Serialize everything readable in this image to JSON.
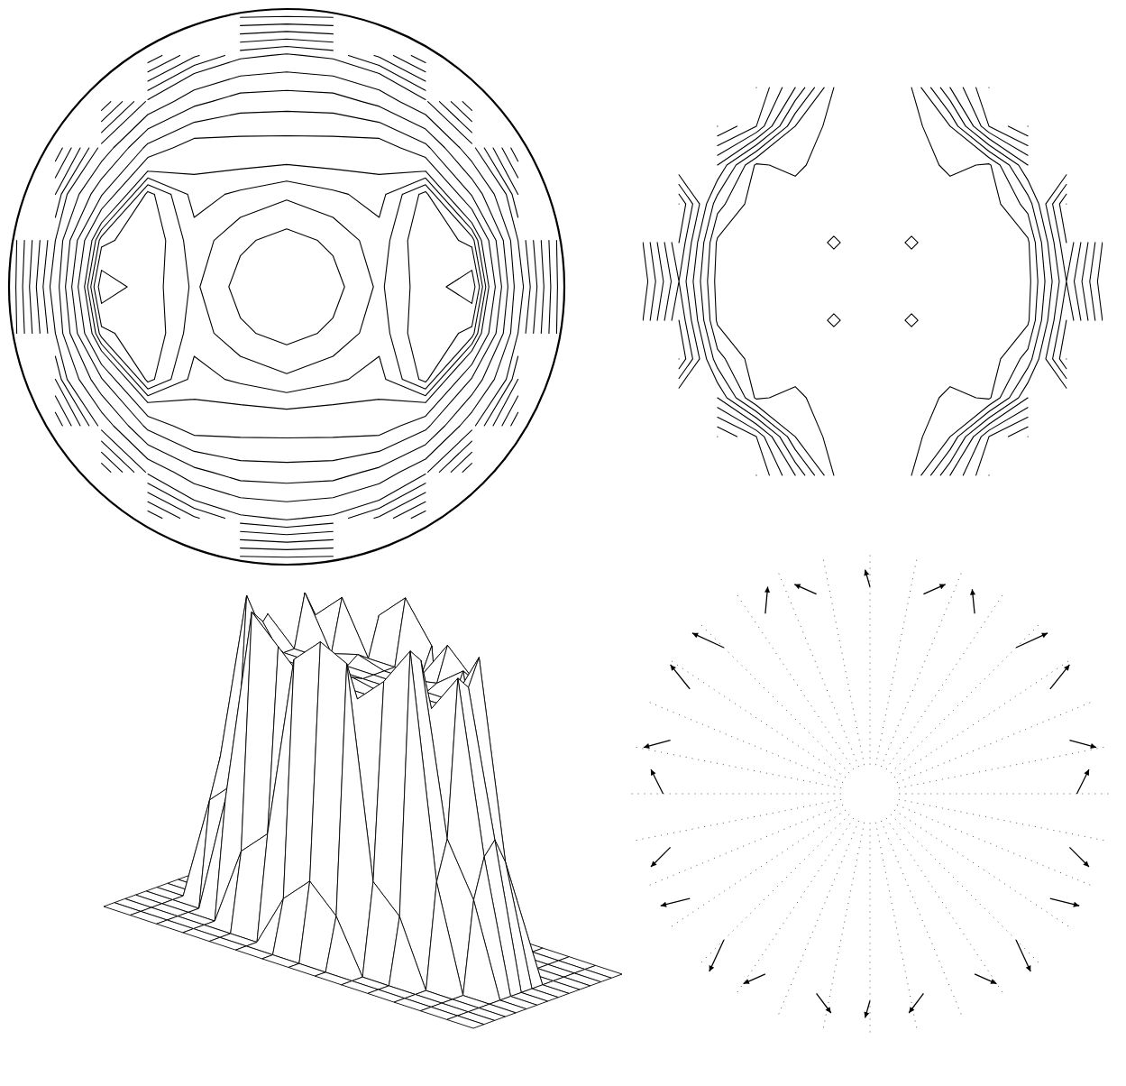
{
  "chart_data": [
    {
      "type": "contour",
      "x": [
        -1,
        -0.833,
        -0.667,
        -0.5,
        -0.333,
        -0.167,
        0,
        0.167,
        0.333,
        0.5,
        0.667,
        0.833,
        1
      ],
      "y": [
        1,
        0.833,
        0.667,
        0.5,
        0.333,
        0.167,
        0,
        -0.167,
        -0.333,
        -0.5,
        -0.667,
        -0.833,
        -1
      ],
      "levels": [
        0.5,
        1,
        1.5,
        2,
        2.5,
        3,
        4,
        5,
        6,
        7,
        8,
        8.5,
        9,
        9.5,
        10.2
      ],
      "values": [
        [
          null,
          null,
          null,
          null,
          null,
          0,
          0,
          0,
          null,
          null,
          null,
          null,
          null
        ],
        [
          null,
          null,
          null,
          0.6,
          1.9,
          2.8,
          3.1,
          2.8,
          1.9,
          0.6,
          null,
          null,
          null
        ],
        [
          null,
          null,
          1.1,
          3.1,
          4.7,
          5.5,
          5.6,
          5.5,
          4.7,
          3.1,
          1.1,
          null,
          null
        ],
        [
          null,
          0.6,
          3.2,
          6.3,
          7.6,
          7.5,
          7.5,
          7.5,
          7.6,
          6.3,
          3.2,
          0.6,
          null
        ],
        [
          null,
          2.0,
          5.9,
          9.7,
          8.3,
          8.6,
          8.9,
          8.6,
          8.3,
          9.7,
          5.9,
          2.0,
          null
        ],
        [
          0,
          3.0,
          9.3,
          10.0,
          8.7,
          9.4,
          9.7,
          9.4,
          8.7,
          10.0,
          9.3,
          3.0,
          0
        ],
        [
          0,
          3.4,
          10.7,
          9.8,
          8.9,
          9.7,
          10.0,
          9.7,
          8.9,
          9.8,
          10.7,
          3.4,
          0
        ],
        [
          0,
          3.0,
          9.3,
          10.0,
          8.7,
          9.4,
          9.7,
          9.4,
          8.7,
          10.0,
          9.3,
          3.0,
          0
        ],
        [
          null,
          2.0,
          5.9,
          9.7,
          8.3,
          8.6,
          8.9,
          8.6,
          8.3,
          9.7,
          5.9,
          2.0,
          null
        ],
        [
          null,
          0.6,
          3.2,
          6.3,
          7.6,
          7.5,
          7.5,
          7.5,
          7.6,
          6.3,
          3.2,
          0.6,
          null
        ],
        [
          null,
          null,
          1.1,
          3.1,
          4.7,
          5.5,
          5.6,
          5.5,
          4.7,
          3.1,
          1.1,
          null,
          null
        ],
        [
          null,
          null,
          null,
          0.6,
          1.9,
          2.8,
          3.1,
          2.8,
          1.9,
          0.6,
          null,
          null,
          null
        ],
        [
          null,
          null,
          null,
          null,
          null,
          0,
          0,
          0,
          null,
          null,
          null,
          null,
          null
        ]
      ]
    },
    {
      "type": "contour",
      "x": [
        -1,
        -0.833,
        -0.667,
        -0.5,
        -0.333,
        -0.167,
        0,
        0.167,
        0.333,
        0.5,
        0.667,
        0.833,
        1
      ],
      "y": [
        1,
        0.833,
        0.667,
        0.5,
        0.333,
        0.167,
        0,
        -0.167,
        -0.333,
        -0.5,
        -0.667,
        -0.833,
        -1
      ],
      "levels": [
        0.5,
        1,
        1.5,
        2,
        2.5,
        3,
        3.5,
        4,
        4.5
      ],
      "values": [
        [
          null,
          null,
          null,
          null,
          null,
          0.2,
          0,
          0.2,
          null,
          null,
          null,
          null,
          null
        ],
        [
          null,
          null,
          null,
          4.0,
          2.5,
          0.5,
          0,
          0.5,
          2.5,
          4.0,
          null,
          null,
          null
        ],
        [
          null,
          null,
          4.5,
          3.5,
          1.0,
          0.3,
          0,
          0.3,
          1.0,
          3.5,
          4.5,
          null,
          null
        ],
        [
          null,
          2.0,
          2.5,
          0.4,
          0.7,
          0,
          0,
          0,
          0.7,
          0.4,
          2.5,
          2.0,
          null
        ],
        [
          null,
          4.0,
          1.2,
          0.2,
          0,
          0,
          0,
          0,
          0,
          0.2,
          1.2,
          4.0,
          null
        ],
        [
          0.8,
          3.5,
          0.4,
          0,
          0,
          0.6,
          0,
          0.6,
          0,
          0,
          0.4,
          3.5,
          0.8
        ],
        [
          0.5,
          3.0,
          0.3,
          0,
          0,
          0,
          0,
          0,
          0,
          0,
          0.3,
          3.0,
          0.5
        ],
        [
          0.8,
          3.5,
          0.4,
          0,
          0,
          0.6,
          0,
          0.6,
          0,
          0,
          0.4,
          3.5,
          0.8
        ],
        [
          null,
          4.0,
          1.2,
          0.2,
          0,
          0,
          0,
          0,
          0,
          0.2,
          1.2,
          4.0,
          null
        ],
        [
          null,
          2.0,
          2.5,
          0.4,
          0.7,
          0,
          0,
          0,
          0.7,
          0.4,
          2.5,
          2.0,
          null
        ],
        [
          null,
          null,
          4.5,
          3.5,
          1.0,
          0.3,
          0,
          0.3,
          1.0,
          3.5,
          4.5,
          null,
          null
        ],
        [
          null,
          null,
          null,
          4.0,
          2.5,
          0.5,
          0,
          0.5,
          2.5,
          4.0,
          null,
          null,
          null
        ],
        [
          null,
          null,
          null,
          null,
          null,
          0.2,
          0,
          0.2,
          null,
          null,
          null,
          null,
          null
        ]
      ]
    },
    {
      "type": "surface",
      "values": [
        [
          0,
          0,
          0,
          0,
          0,
          0,
          0,
          0,
          0,
          0,
          0,
          0,
          0,
          0,
          0
        ],
        [
          0,
          0,
          0,
          0,
          0,
          0,
          0,
          0,
          0,
          0,
          0,
          0,
          0,
          0,
          0
        ],
        [
          0,
          0,
          0,
          0,
          0,
          0,
          0,
          0,
          0,
          0,
          0,
          0,
          0,
          0,
          0
        ],
        [
          0,
          0,
          0,
          0,
          0,
          0,
          11.5,
          12.5,
          11,
          0,
          0,
          0,
          0,
          0,
          0
        ],
        [
          0,
          0,
          0,
          3,
          11,
          12,
          10,
          10,
          10,
          11.5,
          10.5,
          2.5,
          0,
          0,
          0
        ],
        [
          0,
          0,
          3.5,
          4.5,
          12,
          10,
          10.3,
          10,
          10,
          10.2,
          11,
          4,
          3,
          0,
          0
        ],
        [
          0,
          0,
          5,
          11,
          10,
          10,
          10,
          10,
          10,
          10,
          10,
          12,
          4.5,
          0,
          0
        ],
        [
          0,
          0,
          4,
          10.5,
          10,
          10,
          10,
          10,
          10,
          10,
          10,
          11,
          5.5,
          0,
          0
        ],
        [
          0,
          0,
          5.5,
          12,
          10,
          10,
          10,
          10.2,
          10,
          10,
          10,
          11.5,
          5,
          0,
          0
        ],
        [
          0,
          0,
          4,
          5,
          11.5,
          10,
          10,
          10,
          10,
          10,
          12,
          5.5,
          3.5,
          0,
          0
        ],
        [
          0,
          0,
          0,
          4.5,
          12,
          11,
          10,
          10,
          10,
          11,
          12.5,
          4,
          0,
          0,
          0
        ],
        [
          0,
          0,
          0,
          0,
          3,
          4,
          11,
          12,
          11.5,
          3.5,
          2.5,
          0,
          0,
          0,
          0
        ],
        [
          0,
          0,
          0,
          0,
          0,
          0,
          2,
          3,
          2,
          0,
          0,
          0,
          0,
          0,
          0
        ],
        [
          0,
          0,
          0,
          0,
          0,
          0,
          0,
          0,
          0,
          0,
          0,
          0,
          0,
          0,
          0
        ],
        [
          0,
          0,
          0,
          0,
          0,
          0,
          0,
          0,
          0,
          0,
          0,
          0,
          0,
          0,
          0
        ]
      ]
    },
    {
      "type": "quiver",
      "x": [
        0.85,
        0.82,
        0.74,
        0.6,
        0.43,
        0.22,
        0,
        -0.22,
        -0.43,
        -0.6,
        -0.74,
        -0.82,
        -0.85,
        -0.82,
        -0.74,
        -0.6,
        -0.43,
        -0.22,
        0,
        0.22,
        0.43,
        0.6,
        0.74,
        0.82
      ],
      "y": [
        0,
        0.22,
        0.43,
        0.6,
        0.74,
        0.82,
        0.85,
        0.82,
        0.74,
        0.6,
        0.43,
        0.22,
        0,
        -0.22,
        -0.43,
        -0.6,
        -0.74,
        -0.82,
        -0.85,
        -0.82,
        -0.74,
        -0.6,
        -0.43,
        -0.22
      ],
      "u": [
        0.05,
        0.11,
        0.08,
        0.13,
        -0.01,
        0.09,
        -0.02,
        -0.09,
        0.01,
        -0.13,
        -0.08,
        -0.11,
        -0.05,
        -0.08,
        -0.12,
        -0.06,
        -0.09,
        0.06,
        -0.02,
        -0.06,
        0.09,
        0.06,
        0.12,
        0.08
      ],
      "v": [
        0.1,
        -0.03,
        0.1,
        0.06,
        0.1,
        0.04,
        0.07,
        0.04,
        0.11,
        0.06,
        0.1,
        -0.03,
        0.1,
        -0.08,
        -0.03,
        -0.13,
        -0.04,
        -0.08,
        -0.07,
        -0.08,
        -0.04,
        -0.13,
        -0.03,
        -0.08
      ]
    }
  ]
}
